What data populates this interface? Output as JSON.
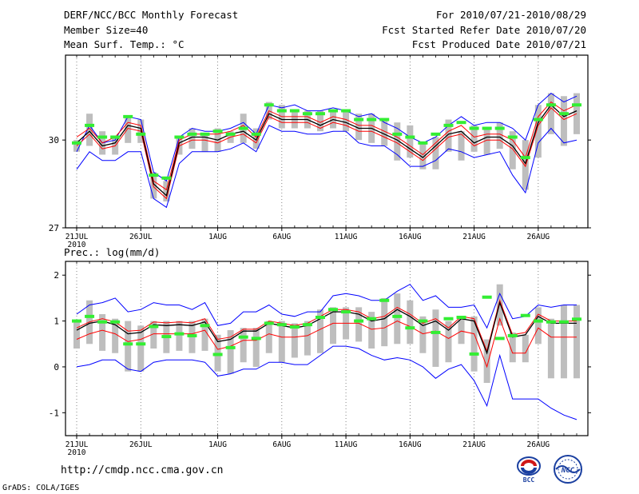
{
  "header": {
    "title": "DERF/NCC/BCC Monthly Forecast",
    "member_size": "Member Size=40",
    "variable": "Mean Surf. Temp.: °C",
    "period": "For 2010/07/21-2010/08/29",
    "started": "Fcst Started Refer Date 2010/07/20",
    "produced": "Fcst Produced Date 2010/07/21"
  },
  "footer": {
    "url": "http://cmdp.ncc.cma.gov.cn",
    "grads": "GrADS: COLA/IGES",
    "logo_bcc": "BCC",
    "logo_ncc": "NCC"
  },
  "colors": {
    "upper": "#0000ff",
    "lower": "#0000ff",
    "mean": "#000000",
    "inner": "#ff0000",
    "obs": "#33ee33",
    "box": "#bebebe"
  },
  "chart_data": [
    {
      "type": "line",
      "title": "Mean Surf. Temp.: °C",
      "ylim": [
        27,
        32.9
      ],
      "yticks": [
        27,
        30
      ],
      "xlim": [
        0,
        39
      ],
      "x_ticks": [
        {
          "x": 0,
          "label": "21JUL"
        },
        {
          "x": 5,
          "label": "26JUL"
        },
        {
          "x": 11,
          "label": "1AUG"
        },
        {
          "x": 16,
          "label": "6AUG"
        },
        {
          "x": 21,
          "label": "11AUG"
        },
        {
          "x": 26,
          "label": "16AUG"
        },
        {
          "x": 31,
          "label": "21AUG"
        },
        {
          "x": 36,
          "label": "26AUG"
        }
      ],
      "x_year_label": "2010",
      "series": [
        {
          "name": "max",
          "values": [
            29.6,
            30.5,
            29.9,
            30.0,
            30.8,
            30.7,
            28.9,
            28.6,
            30.1,
            30.4,
            30.3,
            30.3,
            30.4,
            30.6,
            30.2,
            31.2,
            31.1,
            31.2,
            31.0,
            31.0,
            31.1,
            31.0,
            30.8,
            30.9,
            30.6,
            30.4,
            30.1,
            29.9,
            30.1,
            30.5,
            30.8,
            30.5,
            30.6,
            30.6,
            30.4,
            30.0,
            31.2,
            31.6,
            31.3,
            31.5
          ]
        },
        {
          "name": "inner_upper",
          "values": [
            30.1,
            30.4,
            29.9,
            30.1,
            30.6,
            30.5,
            28.6,
            28.3,
            30.0,
            30.2,
            30.2,
            30.2,
            30.3,
            30.5,
            30.1,
            31.0,
            30.8,
            30.8,
            30.8,
            30.6,
            30.8,
            30.7,
            30.5,
            30.5,
            30.3,
            30.1,
            29.8,
            29.5,
            29.9,
            30.3,
            30.5,
            30.1,
            30.2,
            30.2,
            30.0,
            29.4,
            30.8,
            31.3,
            31.0,
            31.2
          ]
        },
        {
          "name": "mean",
          "values": [
            29.9,
            30.3,
            29.8,
            29.9,
            30.5,
            30.4,
            28.5,
            28.1,
            29.9,
            30.1,
            30.1,
            30.0,
            30.2,
            30.3,
            30.0,
            30.9,
            30.7,
            30.7,
            30.7,
            30.5,
            30.7,
            30.6,
            30.4,
            30.4,
            30.2,
            30.0,
            29.7,
            29.4,
            29.8,
            30.2,
            30.3,
            29.9,
            30.1,
            30.1,
            29.8,
            29.2,
            30.6,
            31.2,
            30.8,
            31.0
          ]
        },
        {
          "name": "inner_lower",
          "values": [
            29.8,
            30.2,
            29.7,
            29.8,
            30.4,
            30.3,
            28.4,
            28.0,
            29.8,
            30.0,
            30.0,
            29.9,
            30.1,
            30.2,
            29.9,
            30.8,
            30.6,
            30.6,
            30.6,
            30.4,
            30.6,
            30.5,
            30.3,
            30.3,
            30.1,
            29.9,
            29.6,
            29.3,
            29.7,
            30.1,
            30.2,
            29.8,
            30.0,
            30.0,
            29.7,
            29.1,
            30.5,
            31.1,
            30.7,
            30.9
          ]
        },
        {
          "name": "min",
          "values": [
            29.0,
            29.6,
            29.3,
            29.3,
            29.6,
            29.6,
            28.0,
            27.7,
            29.2,
            29.6,
            29.6,
            29.6,
            29.7,
            29.9,
            29.6,
            30.5,
            30.3,
            30.3,
            30.2,
            30.2,
            30.3,
            30.3,
            29.9,
            29.8,
            29.8,
            29.5,
            29.1,
            29.1,
            29.3,
            29.7,
            29.6,
            29.4,
            29.5,
            29.6,
            28.8,
            28.2,
            29.9,
            30.4,
            29.9,
            30.0
          ]
        },
        {
          "name": "obs",
          "values": [
            29.9,
            30.5,
            30.1,
            30.1,
            30.8,
            30.2,
            28.8,
            28.7,
            30.1,
            30.2,
            30.2,
            30.3,
            30.2,
            30.4,
            30.2,
            31.2,
            31.0,
            31.0,
            30.9,
            30.9,
            31.0,
            31.0,
            30.7,
            30.7,
            30.7,
            30.2,
            30.1,
            29.9,
            30.2,
            30.5,
            30.6,
            30.4,
            30.4,
            30.4,
            30.1,
            29.4,
            30.7,
            31.2,
            30.9,
            31.2
          ]
        },
        {
          "name": "box_top",
          "values": [
            30.0,
            30.9,
            30.3,
            30.1,
            30.8,
            30.7,
            28.9,
            28.6,
            30.1,
            30.4,
            30.2,
            30.4,
            30.3,
            30.9,
            30.4,
            31.3,
            31.2,
            31.0,
            31.0,
            31.0,
            31.0,
            31.0,
            30.9,
            30.9,
            30.7,
            30.6,
            30.5,
            29.9,
            30.1,
            30.7,
            30.3,
            30.5,
            30.4,
            30.6,
            30.3,
            30.0,
            31.2,
            31.6,
            31.5,
            31.6
          ]
        },
        {
          "name": "box_bottom",
          "values": [
            29.6,
            29.8,
            29.5,
            29.5,
            29.9,
            29.9,
            28.0,
            27.9,
            29.5,
            29.7,
            29.6,
            29.6,
            29.9,
            29.9,
            29.7,
            30.7,
            30.4,
            30.4,
            30.4,
            30.3,
            30.4,
            30.3,
            30.0,
            29.9,
            29.8,
            29.3,
            29.4,
            29.0,
            29.0,
            29.6,
            29.3,
            29.6,
            29.5,
            29.7,
            29.0,
            28.3,
            29.4,
            30.2,
            29.8,
            30.2
          ]
        }
      ]
    },
    {
      "type": "line",
      "title": "Prec.: log(mm/d)",
      "ylim": [
        -1.5,
        2.3
      ],
      "yticks": [
        -1,
        0,
        1,
        2
      ],
      "xlim": [
        0,
        39
      ],
      "x_ticks": [
        {
          "x": 0,
          "label": "21JUL"
        },
        {
          "x": 5,
          "label": "26JUL"
        },
        {
          "x": 11,
          "label": "1AUG"
        },
        {
          "x": 16,
          "label": "6AUG"
        },
        {
          "x": 21,
          "label": "11AUG"
        },
        {
          "x": 26,
          "label": "16AUG"
        },
        {
          "x": 31,
          "label": "21AUG"
        },
        {
          "x": 36,
          "label": "26AUG"
        }
      ],
      "x_year_label": "2010",
      "series": [
        {
          "name": "max",
          "values": [
            1.15,
            1.35,
            1.4,
            1.5,
            1.2,
            1.25,
            1.4,
            1.35,
            1.35,
            1.25,
            1.4,
            0.9,
            0.95,
            1.2,
            1.2,
            1.35,
            1.15,
            1.1,
            1.2,
            1.2,
            1.55,
            1.6,
            1.55,
            1.45,
            1.45,
            1.65,
            1.8,
            1.45,
            1.55,
            1.3,
            1.3,
            1.35,
            0.85,
            1.6,
            1.05,
            1.1,
            1.35,
            1.3,
            1.35,
            1.35
          ]
        },
        {
          "name": "inner_upper",
          "values": [
            0.85,
            0.98,
            1.05,
            0.98,
            0.78,
            0.8,
            0.98,
            0.96,
            0.98,
            0.96,
            1.05,
            0.6,
            0.65,
            0.82,
            0.82,
            1.0,
            0.95,
            0.9,
            0.95,
            1.1,
            1.25,
            1.25,
            1.2,
            1.05,
            1.1,
            1.3,
            1.15,
            0.95,
            1.05,
            0.85,
            1.1,
            1.05,
            0.35,
            1.45,
            0.7,
            0.75,
            1.15,
            1.0,
            1.0,
            1.0
          ]
        },
        {
          "name": "mean",
          "values": [
            0.8,
            0.95,
            1.0,
            0.92,
            0.72,
            0.75,
            0.92,
            0.9,
            0.92,
            0.9,
            0.98,
            0.55,
            0.6,
            0.78,
            0.78,
            0.95,
            0.9,
            0.85,
            0.9,
            1.05,
            1.2,
            1.2,
            1.15,
            1.0,
            1.05,
            1.25,
            1.1,
            0.9,
            1.0,
            0.8,
            1.05,
            1.0,
            0.3,
            1.4,
            0.65,
            0.7,
            1.1,
            0.95,
            0.95,
            0.95
          ]
        },
        {
          "name": "inner_lower",
          "values": [
            0.6,
            0.72,
            0.8,
            0.72,
            0.55,
            0.6,
            0.72,
            0.72,
            0.72,
            0.72,
            0.8,
            0.38,
            0.45,
            0.58,
            0.58,
            0.72,
            0.65,
            0.65,
            0.68,
            0.82,
            0.95,
            0.95,
            0.95,
            0.82,
            0.85,
            1.0,
            0.88,
            0.72,
            0.78,
            0.62,
            0.78,
            0.72,
            0.0,
            1.05,
            0.3,
            0.3,
            0.85,
            0.65,
            0.65,
            0.65
          ]
        },
        {
          "name": "min",
          "values": [
            0.0,
            0.05,
            0.15,
            0.15,
            -0.05,
            -0.1,
            0.1,
            0.15,
            0.15,
            0.15,
            0.1,
            -0.2,
            -0.15,
            -0.05,
            -0.05,
            0.1,
            0.1,
            0.05,
            0.05,
            0.25,
            0.45,
            0.45,
            0.4,
            0.25,
            0.15,
            0.2,
            0.15,
            0.0,
            -0.25,
            -0.05,
            0.05,
            -0.3,
            -0.85,
            0.25,
            -0.7,
            -0.7,
            -0.7,
            -0.9,
            -1.05,
            -1.15
          ]
        },
        {
          "name": "obs",
          "values": [
            1.0,
            1.1,
            0.98,
            0.98,
            0.5,
            0.5,
            0.88,
            0.66,
            0.72,
            0.68,
            0.9,
            0.27,
            0.42,
            0.65,
            0.62,
            0.95,
            0.92,
            0.87,
            0.92,
            1.08,
            1.25,
            1.2,
            1.0,
            1.05,
            1.45,
            1.1,
            0.85,
            1.0,
            0.75,
            1.05,
            1.08,
            0.28,
            1.52,
            0.62,
            0.68,
            1.12,
            1.0,
            0.98,
            0.98,
            1.04
          ]
        },
        {
          "name": "box_top",
          "values": [
            1.0,
            1.45,
            1.15,
            1.05,
            1.0,
            0.9,
            1.0,
            1.0,
            1.0,
            1.0,
            1.05,
            0.7,
            0.8,
            0.85,
            0.85,
            1.0,
            1.0,
            0.95,
            1.0,
            1.25,
            1.3,
            1.3,
            1.3,
            1.2,
            1.5,
            1.6,
            1.45,
            1.1,
            1.25,
            1.0,
            1.1,
            1.1,
            0.6,
            1.8,
            0.75,
            0.7,
            1.3,
            1.05,
            1.35,
            1.35
          ]
        },
        {
          "name": "box_bottom",
          "values": [
            0.4,
            0.5,
            0.35,
            0.3,
            -0.1,
            -0.1,
            0.4,
            0.3,
            0.35,
            0.3,
            0.35,
            -0.1,
            -0.15,
            0.1,
            0.0,
            0.3,
            0.1,
            0.2,
            0.25,
            0.3,
            0.5,
            0.6,
            0.55,
            0.4,
            0.45,
            0.5,
            0.5,
            0.3,
            0.0,
            0.1,
            0.5,
            -0.1,
            -0.35,
            0.9,
            0.1,
            0.1,
            0.5,
            -0.25,
            -0.25,
            -0.25
          ]
        }
      ]
    }
  ]
}
